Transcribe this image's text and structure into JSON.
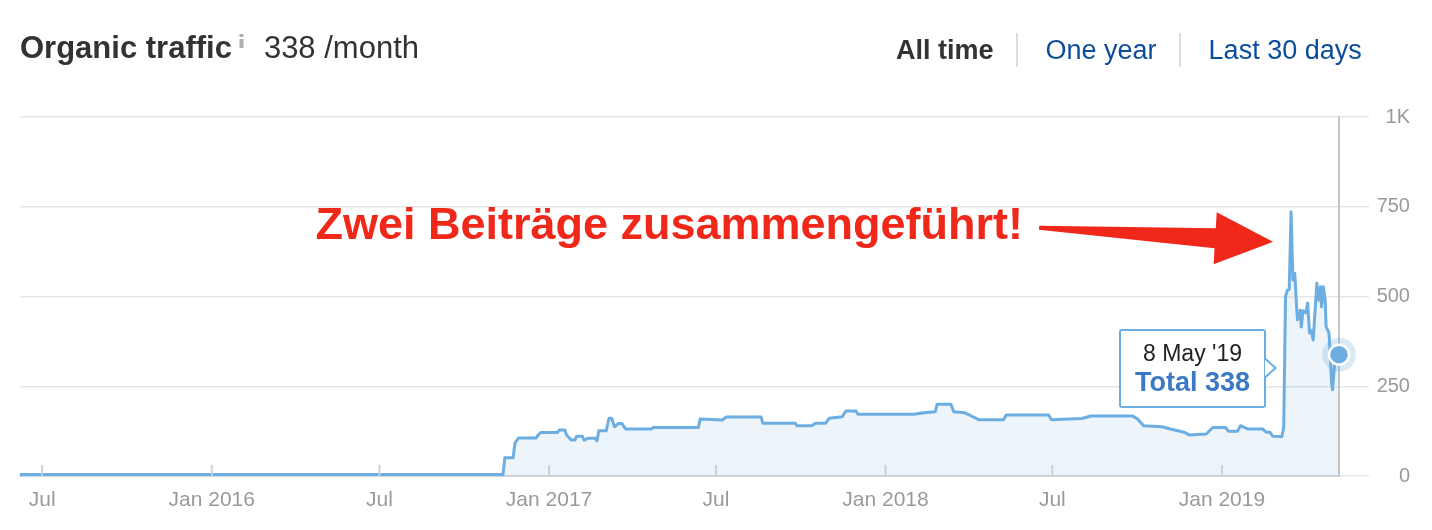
{
  "chart_data": {
    "type": "area",
    "title": "Organic traffic",
    "subtitle": "338 /month",
    "x": [
      "2015-06-07",
      "2016-11-12",
      "2016-11-14",
      "2016-11-23",
      "2016-11-25",
      "2016-11-29",
      "2016-12-18",
      "2016-12-20",
      "2016-12-23",
      "2017-01-10",
      "2017-01-12",
      "2017-01-18",
      "2017-01-20",
      "2017-01-25",
      "2017-01-29",
      "2017-01-31",
      "2017-02-06",
      "2017-02-08",
      "2017-02-12",
      "2017-02-20",
      "2017-02-22",
      "2017-02-24",
      "2017-03-04",
      "2017-03-07",
      "2017-03-10",
      "2017-03-13",
      "2017-03-17",
      "2017-03-21",
      "2017-03-25",
      "2017-04-22",
      "2017-04-24",
      "2017-06-12",
      "2017-06-14",
      "2017-07-08",
      "2017-07-12",
      "2017-08-19",
      "2017-08-21",
      "2017-09-25",
      "2017-09-27",
      "2017-10-13",
      "2017-10-17",
      "2017-10-28",
      "2017-11-01",
      "2017-11-15",
      "2017-11-19",
      "2017-11-30",
      "2017-12-02",
      "2018-02-01",
      "2018-02-06",
      "2018-02-14",
      "2018-02-24",
      "2018-02-26",
      "2018-03-13",
      "2018-03-16",
      "2018-03-28",
      "2018-04-02",
      "2018-04-12",
      "2018-05-09",
      "2018-05-12",
      "2018-06-27",
      "2018-06-30",
      "2018-08-02",
      "2018-08-12",
      "2018-09-26",
      "2018-10-01",
      "2018-10-08",
      "2018-10-28",
      "2018-11-06",
      "2018-11-21",
      "2018-11-27",
      "2018-12-15",
      "2018-12-22",
      "2019-01-05",
      "2019-01-08",
      "2019-01-18",
      "2019-01-21",
      "2019-01-29",
      "2019-02-14",
      "2019-02-18",
      "2019-02-22",
      "2019-02-25",
      "2019-03-07",
      "2019-03-09",
      "2019-03-11",
      "2019-03-13",
      "2019-03-15",
      "2019-03-17",
      "2019-03-19",
      "2019-03-21",
      "2019-03-23",
      "2019-03-24",
      "2019-03-27",
      "2019-03-28",
      "2019-03-30",
      "2019-04-02",
      "2019-04-04",
      "2019-04-06",
      "2019-04-08",
      "2019-04-10",
      "2019-04-14",
      "2019-04-16",
      "2019-04-18",
      "2019-04-19",
      "2019-04-21",
      "2019-04-23",
      "2019-04-24",
      "2019-04-27",
      "2019-04-28",
      "2019-04-30",
      "2019-05-01",
      "2019-05-03",
      "2019-05-05",
      "2019-05-08"
    ],
    "values": [
      4,
      4,
      51,
      51,
      92,
      106,
      106,
      114,
      121,
      121,
      128,
      128,
      114,
      100,
      100,
      111,
      111,
      100,
      105,
      105,
      98,
      126,
      126,
      161,
      161,
      137,
      146,
      146,
      131,
      131,
      135,
      135,
      159,
      156,
      164,
      164,
      147,
      147,
      140,
      140,
      147,
      147,
      161,
      165,
      181,
      181,
      172,
      172,
      174,
      177,
      179,
      200,
      200,
      179,
      176,
      170,
      157,
      157,
      170,
      170,
      157,
      160,
      167,
      167,
      160,
      140,
      137,
      131,
      122,
      114,
      117,
      135,
      135,
      125,
      125,
      140,
      131,
      131,
      122,
      122,
      111,
      110,
      135,
      500,
      518,
      520,
      736,
      546,
      565,
      471,
      435,
      462,
      415,
      460,
      455,
      482,
      398,
      405,
      379,
      537,
      490,
      527,
      471,
      527,
      490,
      415,
      400,
      360,
      259,
      240,
      304,
      342,
      338
    ],
    "color": "#6daee2",
    "xlim": [
      "2015-06-07",
      "2019-05-08"
    ],
    "xticks": [
      {
        "value": "2015-07-01",
        "label": "Jul"
      },
      {
        "value": "2016-01-01",
        "label": "Jan 2016"
      },
      {
        "value": "2016-07-01",
        "label": "Jul"
      },
      {
        "value": "2017-01-01",
        "label": "Jan 2017"
      },
      {
        "value": "2017-07-01",
        "label": "Jul"
      },
      {
        "value": "2018-01-01",
        "label": "Jan 2018"
      },
      {
        "value": "2018-07-01",
        "label": "Jul"
      },
      {
        "value": "2019-01-01",
        "label": "Jan 2019"
      }
    ],
    "ylim": [
      0,
      1000
    ],
    "yticks": [
      0,
      250,
      500,
      750,
      {
        "value": 1000,
        "label": "1K"
      }
    ],
    "grid": "y",
    "annotations": [
      "Zwei Beiträge zusammengeführt!",
      "8 May '19",
      "Total 338",
      "All time",
      "One year",
      "Last 30 days"
    ]
  }
}
